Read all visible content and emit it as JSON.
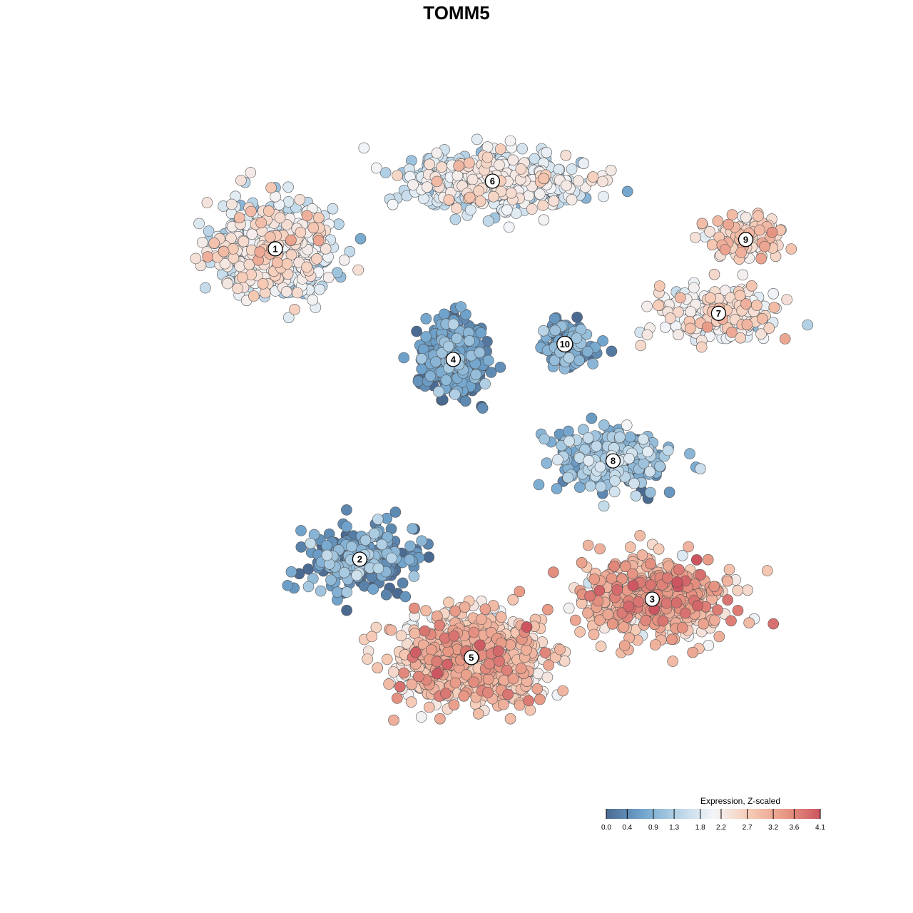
{
  "chart_data": {
    "type": "scatter",
    "title": "TOMM5",
    "xlabel": "",
    "ylabel": "",
    "grid": false,
    "legend": {
      "title": "Expression, Z-scaled",
      "placement": "bottom-right",
      "ticks": [
        "0.0",
        "0.4",
        "0.9",
        "1.3",
        "1.8",
        "2.2",
        "2.7",
        "3.2",
        "3.6",
        "4.1"
      ],
      "range": [
        0.0,
        4.1
      ],
      "colors": [
        "#4a6a92",
        "#6fa3cc",
        "#b6d3e6",
        "#f3f5f8",
        "#f6cbb6",
        "#e89a86",
        "#cc5560"
      ]
    },
    "clusters": [
      {
        "id": "1",
        "x": -0.66,
        "y": 0.72,
        "sx": 0.17,
        "sy": 0.14,
        "n": 650,
        "mean": 1.85,
        "sd": 0.5
      },
      {
        "id": "2",
        "x": -0.38,
        "y": -0.29,
        "sx": 0.16,
        "sy": 0.1,
        "n": 240,
        "mean": 0.6,
        "sd": 0.4
      },
      {
        "id": "3",
        "x": 0.59,
        "y": -0.42,
        "sx": 0.22,
        "sy": 0.12,
        "n": 550,
        "mean": 2.9,
        "sd": 0.5
      },
      {
        "id": "4",
        "x": -0.07,
        "y": 0.36,
        "sx": 0.09,
        "sy": 0.11,
        "n": 420,
        "mean": 0.4,
        "sd": 0.35
      },
      {
        "id": "5",
        "x": -0.01,
        "y": -0.61,
        "sx": 0.23,
        "sy": 0.13,
        "n": 720,
        "mean": 2.7,
        "sd": 0.5
      },
      {
        "id": "6",
        "x": 0.06,
        "y": 0.94,
        "sx": 0.26,
        "sy": 0.08,
        "n": 500,
        "mean": 1.8,
        "sd": 0.45
      },
      {
        "id": "7",
        "x": 0.81,
        "y": 0.51,
        "sx": 0.18,
        "sy": 0.08,
        "n": 250,
        "mean": 2.1,
        "sd": 0.45
      },
      {
        "id": "8",
        "x": 0.46,
        "y": 0.03,
        "sx": 0.17,
        "sy": 0.09,
        "n": 260,
        "mean": 0.9,
        "sd": 0.45
      },
      {
        "id": "9",
        "x": 0.9,
        "y": 0.75,
        "sx": 0.12,
        "sy": 0.06,
        "n": 140,
        "mean": 2.4,
        "sd": 0.45
      },
      {
        "id": "10",
        "x": 0.3,
        "y": 0.41,
        "sx": 0.08,
        "sy": 0.07,
        "n": 130,
        "mean": 0.5,
        "sd": 0.35
      }
    ],
    "x_range": [
      -1.1,
      1.1
    ],
    "y_range": [
      -1.0,
      1.1
    ]
  }
}
